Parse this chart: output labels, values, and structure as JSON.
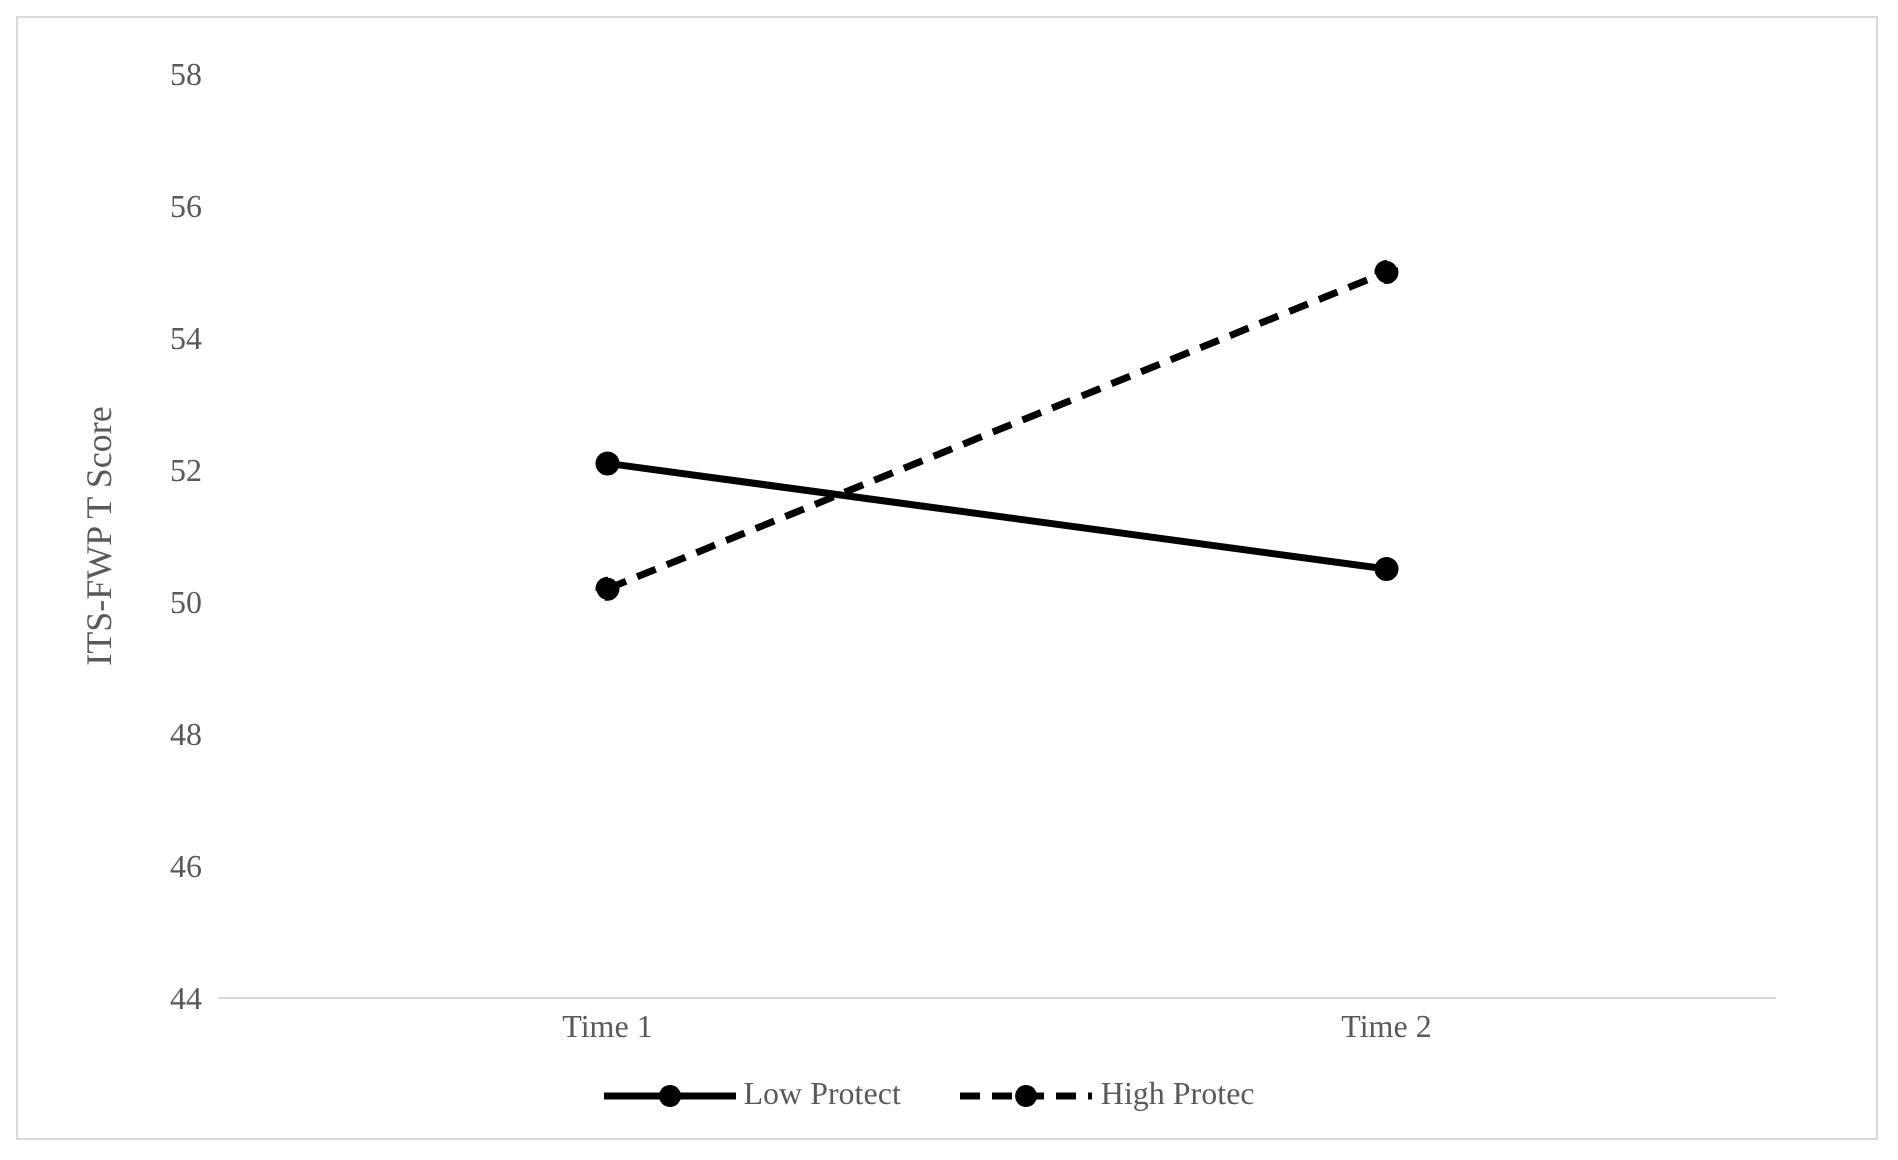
{
  "chart_data": {
    "type": "line",
    "ylabel": "ITS-FWP T Score",
    "categories": [
      "Time 1",
      "Time 2"
    ],
    "series": [
      {
        "name": "Low Protect",
        "color": "#000000",
        "values": [
          52.1,
          50.5
        ],
        "line_style": "solid"
      },
      {
        "name": "High Protec",
        "color": "#000000",
        "values": [
          50.2,
          55.0
        ],
        "line_style": "dashed"
      }
    ],
    "ylim": [
      44,
      58
    ],
    "yticks": [
      44,
      46,
      48,
      50,
      52,
      54,
      56,
      58
    ],
    "grid": false,
    "legend": "bottom",
    "marker": "circle"
  }
}
